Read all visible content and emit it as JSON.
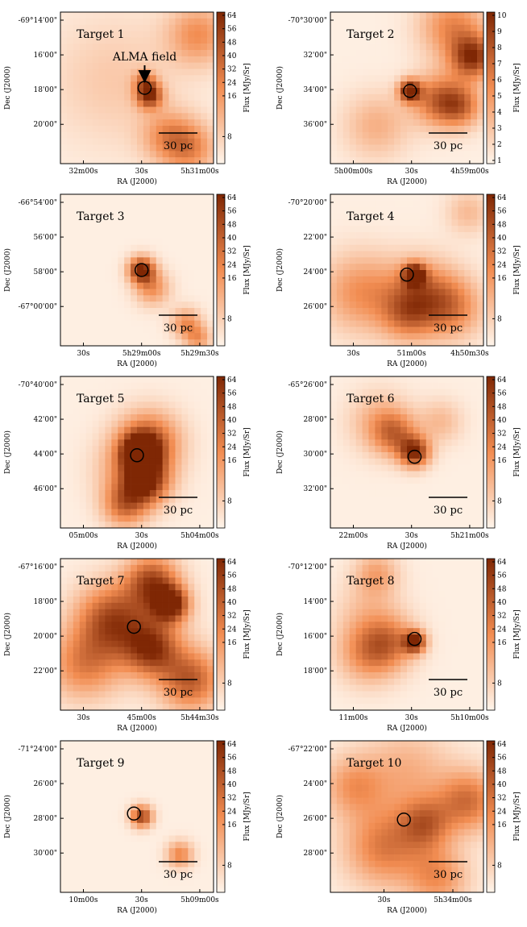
{
  "colors": {
    "background": "#fdf5ec",
    "low": "#fff5eb",
    "mid": "#f28d52",
    "high": "#7f2704",
    "circle": "#000000"
  },
  "labels": {
    "ylabel": "Dec (J2000)",
    "xlabel": "RA (J2000)",
    "cblabel": "Flux [MJy/Sr]",
    "scalebar": "30 pc",
    "alma": "ALMA field"
  },
  "chart_data": [
    {
      "type": "heatmap",
      "title": "Target 1",
      "yticks": [
        "-69°14'00\"",
        "16'00\"",
        "18'00\"",
        "20'00\""
      ],
      "xticks": [
        "32m00s",
        "30s",
        "5h31m00s"
      ],
      "cbticks": [
        "64",
        "56",
        "48",
        "40",
        "32",
        "24",
        "16",
        "8"
      ],
      "colorbar_scale": "log",
      "annotation": "ALMA field",
      "blobs": [
        [
          0.58,
          0.55,
          0.06,
          0.85
        ],
        [
          0.55,
          0.46,
          0.05,
          0.45
        ],
        [
          0.9,
          0.15,
          0.14,
          0.45
        ],
        [
          0.7,
          0.82,
          0.12,
          0.4
        ],
        [
          0.35,
          0.45,
          0.3,
          0.18
        ],
        [
          0.85,
          0.9,
          0.12,
          0.45
        ]
      ],
      "circle": [
        0.55,
        0.5
      ]
    },
    {
      "type": "heatmap",
      "title": "Target 2",
      "yticks": [
        "-70°30'00\"",
        "32'00\"",
        "34'00\"",
        "36'00\""
      ],
      "xticks": [
        "5h00m00s",
        "30s",
        "4h59m00s"
      ],
      "cbticks": [
        "10",
        "9",
        "8",
        "7",
        "6",
        "5",
        "4",
        "3",
        "2",
        "1"
      ],
      "colorbar_scale": "log",
      "blobs": [
        [
          0.52,
          0.52,
          0.05,
          1.0
        ],
        [
          0.7,
          0.58,
          0.12,
          0.6
        ],
        [
          0.93,
          0.3,
          0.1,
          0.85
        ],
        [
          0.85,
          0.62,
          0.1,
          0.55
        ],
        [
          0.3,
          0.75,
          0.15,
          0.3
        ],
        [
          0.8,
          0.1,
          0.15,
          0.5
        ]
      ],
      "circle": [
        0.52,
        0.52
      ]
    },
    {
      "type": "heatmap",
      "title": "Target 3",
      "yticks": [
        "-66°54'00\"",
        "56'00\"",
        "58'00\"",
        "-67°00'00\""
      ],
      "xticks": [
        "30s",
        "5h29m00s",
        "5h29m30s"
      ],
      "cbticks": [
        "64",
        "56",
        "48",
        "40",
        "32",
        "24",
        "16",
        "8"
      ],
      "colorbar_scale": "log",
      "blobs": [
        [
          0.53,
          0.5,
          0.06,
          1.0
        ],
        [
          0.6,
          0.62,
          0.08,
          0.45
        ],
        [
          0.82,
          0.85,
          0.07,
          0.45
        ],
        [
          0.9,
          0.95,
          0.06,
          0.4
        ]
      ],
      "circle": [
        0.53,
        0.5
      ]
    },
    {
      "type": "heatmap",
      "title": "Target 4",
      "yticks": [
        "-70°20'00\"",
        "22'00\"",
        "24'00\"",
        "26'00\""
      ],
      "xticks": [
        "30s",
        "51m00s",
        "4h50m30s"
      ],
      "cbticks": [
        "64",
        "56",
        "48",
        "40",
        "32",
        "24",
        "16",
        "8"
      ],
      "colorbar_scale": "log",
      "blobs": [
        [
          0.55,
          0.53,
          0.05,
          0.95
        ],
        [
          0.2,
          0.65,
          0.18,
          0.45
        ],
        [
          0.6,
          0.66,
          0.16,
          0.55
        ],
        [
          0.8,
          0.75,
          0.14,
          0.45
        ],
        [
          0.5,
          0.8,
          0.12,
          0.4
        ],
        [
          0.9,
          0.12,
          0.1,
          0.25
        ]
      ],
      "circle": [
        0.5,
        0.53
      ]
    },
    {
      "type": "heatmap",
      "title": "Target 5",
      "yticks": [
        "-70°40'00\"",
        "42'00\"",
        "44'00\"",
        "46'00\""
      ],
      "xticks": [
        "05m00s",
        "30s",
        "5h04m00s"
      ],
      "cbticks": [
        "64",
        "56",
        "48",
        "40",
        "32",
        "24",
        "16",
        "8"
      ],
      "colorbar_scale": "log",
      "blobs": [
        [
          0.52,
          0.5,
          0.08,
          0.9
        ],
        [
          0.58,
          0.43,
          0.14,
          0.65
        ],
        [
          0.56,
          0.7,
          0.1,
          0.7
        ],
        [
          0.48,
          0.62,
          0.16,
          0.45
        ],
        [
          0.42,
          0.85,
          0.1,
          0.55
        ]
      ],
      "circle": [
        0.5,
        0.52
      ]
    },
    {
      "type": "heatmap",
      "title": "Target 6",
      "yticks": [
        "-65°26'00\"",
        "28'00\"",
        "30'00\"",
        "32'00\""
      ],
      "xticks": [
        "22m00s",
        "30s",
        "5h21m00s"
      ],
      "cbticks": [
        "64",
        "56",
        "48",
        "40",
        "32",
        "24",
        "16",
        "8"
      ],
      "colorbar_scale": "log",
      "blobs": [
        [
          0.55,
          0.5,
          0.07,
          0.9
        ],
        [
          0.42,
          0.38,
          0.1,
          0.5
        ],
        [
          0.32,
          0.3,
          0.14,
          0.3
        ],
        [
          0.72,
          0.3,
          0.1,
          0.25
        ]
      ],
      "circle": [
        0.55,
        0.53
      ]
    },
    {
      "type": "heatmap",
      "title": "Target 7",
      "yticks": [
        "-67°16'00\"",
        "18'00\"",
        "20'00\"",
        "22'00\""
      ],
      "xticks": [
        "30s",
        "45m00s",
        "5h44m30s"
      ],
      "cbticks": [
        "64",
        "56",
        "48",
        "40",
        "32",
        "24",
        "16",
        "8"
      ],
      "colorbar_scale": "log",
      "blobs": [
        [
          0.72,
          0.3,
          0.08,
          1.0
        ],
        [
          0.6,
          0.15,
          0.12,
          0.75
        ],
        [
          0.32,
          0.4,
          0.16,
          0.6
        ],
        [
          0.6,
          0.6,
          0.12,
          0.65
        ],
        [
          0.15,
          0.7,
          0.16,
          0.5
        ],
        [
          0.85,
          0.8,
          0.14,
          0.7
        ],
        [
          0.5,
          0.48,
          0.2,
          0.35
        ]
      ],
      "circle": [
        0.48,
        0.45
      ]
    },
    {
      "type": "heatmap",
      "title": "Target 8",
      "yticks": [
        "-70°12'00\"",
        "14'00\"",
        "16'00\"",
        "18'00\""
      ],
      "xticks": [
        "11m00s",
        "30s",
        "5h10m00s"
      ],
      "cbticks": [
        "64",
        "56",
        "48",
        "40",
        "32",
        "24",
        "16",
        "8"
      ],
      "colorbar_scale": "log",
      "blobs": [
        [
          0.55,
          0.55,
          0.05,
          0.95
        ],
        [
          0.25,
          0.62,
          0.14,
          0.5
        ],
        [
          0.4,
          0.55,
          0.12,
          0.4
        ],
        [
          0.3,
          0.1,
          0.1,
          0.35
        ],
        [
          0.25,
          0.35,
          0.15,
          0.2
        ]
      ],
      "circle": [
        0.55,
        0.53
      ]
    },
    {
      "type": "heatmap",
      "title": "Target 9",
      "yticks": [
        "-71°24'00\"",
        "26'00\"",
        "28'00\"",
        "30'00\""
      ],
      "xticks": [
        "10m00s",
        "30s",
        "5h09m00s"
      ],
      "cbticks": [
        "64",
        "56",
        "48",
        "40",
        "32",
        "24",
        "16",
        "8"
      ],
      "colorbar_scale": "log",
      "blobs": [
        [
          0.53,
          0.5,
          0.05,
          0.85
        ],
        [
          0.78,
          0.75,
          0.06,
          0.5
        ]
      ],
      "circle": [
        0.48,
        0.48
      ]
    },
    {
      "type": "heatmap",
      "title": "Target 10",
      "yticks": [
        "-67°22'00\"",
        "24'00\"",
        "26'00\"",
        "28'00\""
      ],
      "xticks": [
        "30s",
        "5h34m00s"
      ],
      "cbticks": [
        "64",
        "56",
        "48",
        "40",
        "32",
        "24",
        "16",
        "8"
      ],
      "colorbar_scale": "log",
      "blobs": [
        [
          0.35,
          0.7,
          0.18,
          0.55
        ],
        [
          0.62,
          0.55,
          0.12,
          0.55
        ],
        [
          0.9,
          0.4,
          0.14,
          0.6
        ],
        [
          0.15,
          0.3,
          0.14,
          0.4
        ],
        [
          0.7,
          0.9,
          0.14,
          0.45
        ],
        [
          0.5,
          0.2,
          0.2,
          0.3
        ]
      ],
      "circle": [
        0.48,
        0.52
      ]
    }
  ]
}
